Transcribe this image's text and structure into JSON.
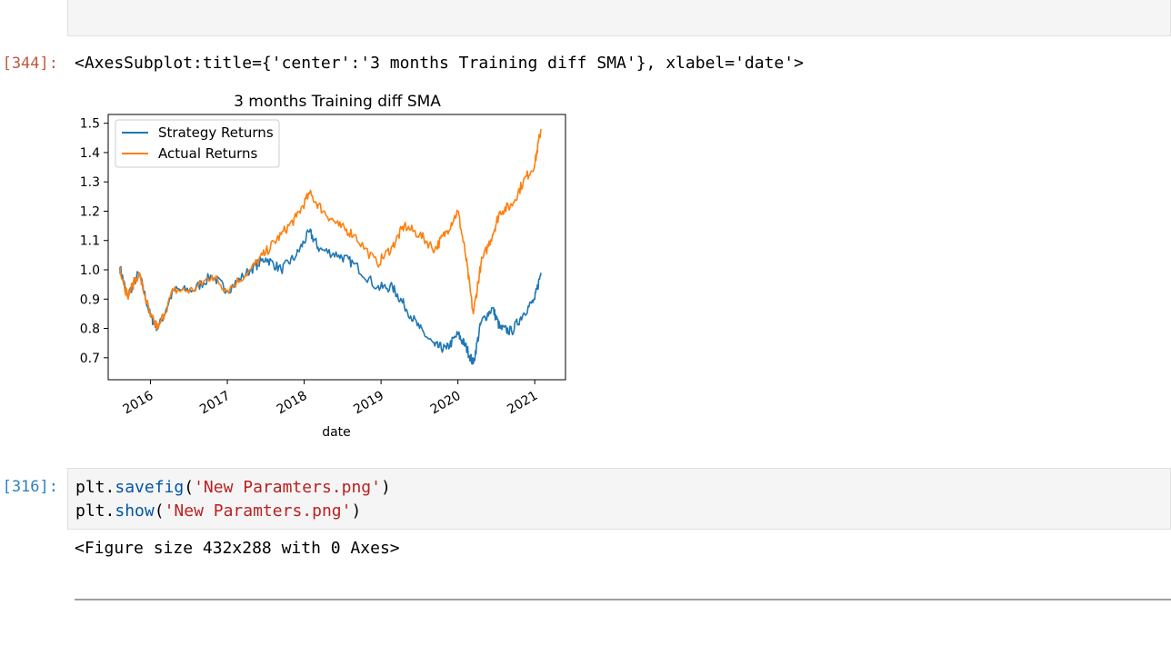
{
  "output_cell": {
    "prompt": "[344]:",
    "repr": "<AxesSubplot:title={'center':'3 months Training diff SMA'}, xlabel='date'>"
  },
  "chart_data": {
    "type": "line",
    "title": "3 months Training diff SMA",
    "xlabel": "date",
    "ylabel": "",
    "xlim": [
      2015.45,
      2021.4
    ],
    "ylim": [
      0.625,
      1.53
    ],
    "x_ticks": [
      2016,
      2017,
      2018,
      2019,
      2020,
      2021
    ],
    "x_tick_labels": [
      "2016",
      "2017",
      "2018",
      "2019",
      "2020",
      "2021"
    ],
    "y_ticks": [
      0.7,
      0.8,
      0.9,
      1.0,
      1.1,
      1.2,
      1.3,
      1.4,
      1.5
    ],
    "y_tick_labels": [
      "0.7",
      "0.8",
      "0.9",
      "1.0",
      "1.1",
      "1.2",
      "1.3",
      "1.4",
      "1.5"
    ],
    "legend_position": "upper-left",
    "grid": false,
    "series": [
      {
        "name": "Strategy Returns",
        "color": "#1f77b4",
        "x": [
          2015.6,
          2015.7,
          2015.85,
          2016.0,
          2016.1,
          2016.3,
          2016.55,
          2016.8,
          2017.0,
          2017.3,
          2017.5,
          2017.7,
          2017.9,
          2018.07,
          2018.2,
          2018.45,
          2018.65,
          2018.95,
          2019.15,
          2019.3,
          2019.5,
          2019.7,
          2019.85,
          2020.0,
          2020.1,
          2020.2,
          2020.3,
          2020.45,
          2020.55,
          2020.7,
          2020.85,
          2021.0,
          2021.08
        ],
        "y": [
          1.01,
          0.91,
          0.99,
          0.84,
          0.8,
          0.93,
          0.93,
          0.98,
          0.93,
          1.0,
          1.04,
          1.0,
          1.05,
          1.13,
          1.07,
          1.05,
          1.02,
          0.94,
          0.94,
          0.88,
          0.8,
          0.74,
          0.73,
          0.78,
          0.74,
          0.68,
          0.82,
          0.87,
          0.8,
          0.79,
          0.85,
          0.9,
          0.99
        ]
      },
      {
        "name": "Actual Returns",
        "color": "#ff7f0e",
        "x": [
          2015.6,
          2015.7,
          2015.85,
          2016.0,
          2016.1,
          2016.3,
          2016.55,
          2016.8,
          2017.0,
          2017.3,
          2017.5,
          2017.7,
          2017.9,
          2018.07,
          2018.25,
          2018.45,
          2018.65,
          2018.95,
          2019.15,
          2019.3,
          2019.5,
          2019.7,
          2019.85,
          2020.0,
          2020.1,
          2020.2,
          2020.3,
          2020.45,
          2020.55,
          2020.7,
          2020.85,
          2021.0,
          2021.08
        ],
        "y": [
          1.01,
          0.91,
          0.99,
          0.84,
          0.8,
          0.93,
          0.93,
          0.98,
          0.93,
          1.0,
          1.06,
          1.12,
          1.18,
          1.26,
          1.2,
          1.15,
          1.12,
          1.02,
          1.08,
          1.15,
          1.12,
          1.07,
          1.13,
          1.2,
          1.05,
          0.85,
          1.02,
          1.12,
          1.2,
          1.22,
          1.3,
          1.36,
          1.48
        ]
      }
    ]
  },
  "input_cell": {
    "prompt": "[316]:",
    "line1": {
      "obj": "plt",
      "dot": ".",
      "fn": "savefig",
      "open": "(",
      "arg": "'New Paramters.png'",
      "close": ")"
    },
    "line2": {
      "obj": "plt",
      "dot": ".",
      "fn": "show",
      "open": "(",
      "arg": "'New Paramters.png'",
      "close": ")"
    }
  },
  "figure_output": {
    "text": "<Figure size 432x288 with 0 Axes>"
  }
}
